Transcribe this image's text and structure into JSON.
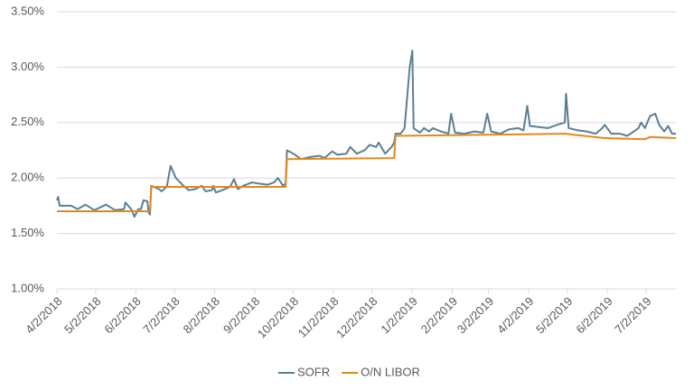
{
  "chart_data": {
    "type": "line",
    "xlim": [
      "4/2/2018",
      "7/25/2019"
    ],
    "xticks": [
      "4/2/2018",
      "5/2/2018",
      "6/2/2018",
      "7/2/2018",
      "8/2/2018",
      "9/2/2018",
      "10/2/2018",
      "11/2/2018",
      "12/2/2018",
      "1/2/2019",
      "2/2/2019",
      "3/2/2019",
      "4/2/2019",
      "5/2/2019",
      "6/2/2019",
      "7/2/2019"
    ],
    "ylim": [
      1,
      3.5
    ],
    "yticks": [
      {
        "value": 1,
        "label": "1.00%"
      },
      {
        "value": 1.5,
        "label": "1.50%"
      },
      {
        "value": 2,
        "label": "2.00%"
      },
      {
        "value": 2.5,
        "label": "2.50%"
      },
      {
        "value": 3,
        "label": "3.00%"
      },
      {
        "value": 3.5,
        "label": "3.50%"
      }
    ],
    "grid": true,
    "legend": "bottom",
    "series": [
      {
        "name": "SOFR",
        "color": "#5b7f95",
        "x": [
          "4/2/2018",
          "4/3/2018",
          "4/4/2018",
          "4/13/2018",
          "4/18/2018",
          "4/24/2018",
          "5/1/2018",
          "5/10/2018",
          "5/17/2018",
          "5/24/2018",
          "5/25/2018",
          "5/30/2018",
          "6/1/2018",
          "6/4/2018",
          "6/6/2018",
          "6/8/2018",
          "6/11/2018",
          "6/12/2018",
          "6/13/2018",
          "6/14/2018",
          "6/20/2018",
          "6/22/2018",
          "6/26/2018",
          "6/29/2018",
          "7/3/2018",
          "7/9/2018",
          "7/13/2018",
          "7/18/2018",
          "7/23/2018",
          "7/26/2018",
          "7/31/2018",
          "8/1/2018",
          "8/3/2018",
          "8/8/2018",
          "8/14/2018",
          "8/17/2018",
          "8/20/2018",
          "8/24/2018",
          "8/31/2018",
          "9/5/2018",
          "9/12/2018",
          "9/17/2018",
          "9/20/2018",
          "9/24/2018",
          "9/26/2018",
          "9/27/2018",
          "10/2/2018",
          "10/8/2018",
          "10/15/2018",
          "10/22/2018",
          "10/26/2018",
          "11/1/2018",
          "11/5/2018",
          "11/12/2018",
          "11/15/2018",
          "11/20/2018",
          "11/26/2018",
          "11/30/2018",
          "12/5/2018",
          "12/7/2018",
          "12/12/2018",
          "12/17/2018",
          "12/19/2018",
          "12/20/2018",
          "12/24/2018",
          "12/27/2018",
          "12/31/2018",
          "1/2/2019",
          "1/3/2019",
          "1/8/2019",
          "1/11/2019",
          "1/15/2019",
          "1/18/2019",
          "1/24/2019",
          "1/30/2019",
          "2/1/2019",
          "2/4/2019",
          "2/11/2019",
          "2/19/2019",
          "2/26/2019",
          "3/1/2019",
          "3/4/2019",
          "3/11/2019",
          "3/18/2019",
          "3/25/2019",
          "3/29/2019",
          "4/1/2019",
          "4/3/2019",
          "4/10/2019",
          "4/17/2019",
          "4/24/2019",
          "4/30/2019",
          "5/1/2019",
          "5/3/2019",
          "5/10/2019",
          "5/17/2019",
          "5/24/2019",
          "5/29/2019",
          "5/31/2019",
          "6/5/2019",
          "6/12/2019",
          "6/17/2019",
          "6/20/2019",
          "6/26/2019",
          "6/28/2019",
          "7/1/2019",
          "7/5/2019",
          "7/9/2019",
          "7/12/2019",
          "7/16/2019",
          "7/19/2019",
          "7/22/2019",
          "7/25/2019"
        ],
        "values": [
          1.8,
          1.83,
          1.75,
          1.75,
          1.72,
          1.76,
          1.71,
          1.76,
          1.71,
          1.72,
          1.78,
          1.71,
          1.65,
          1.72,
          1.72,
          1.8,
          1.79,
          1.69,
          1.67,
          1.93,
          1.9,
          1.88,
          1.92,
          2.11,
          2.0,
          1.93,
          1.89,
          1.9,
          1.93,
          1.88,
          1.89,
          1.93,
          1.87,
          1.89,
          1.92,
          1.99,
          1.9,
          1.93,
          1.96,
          1.95,
          1.94,
          1.96,
          2.0,
          1.93,
          1.95,
          2.25,
          2.22,
          2.17,
          2.19,
          2.2,
          2.18,
          2.24,
          2.21,
          2.22,
          2.28,
          2.22,
          2.25,
          2.3,
          2.28,
          2.32,
          2.22,
          2.28,
          2.32,
          2.4,
          2.4,
          2.45,
          3.0,
          3.15,
          2.45,
          2.41,
          2.45,
          2.42,
          2.45,
          2.42,
          2.4,
          2.58,
          2.41,
          2.4,
          2.42,
          2.41,
          2.58,
          2.42,
          2.4,
          2.44,
          2.45,
          2.43,
          2.65,
          2.47,
          2.46,
          2.45,
          2.48,
          2.5,
          2.76,
          2.45,
          2.43,
          2.42,
          2.4,
          2.45,
          2.48,
          2.4,
          2.4,
          2.38,
          2.4,
          2.45,
          2.5,
          2.45,
          2.56,
          2.58,
          2.48,
          2.42,
          2.47,
          2.4,
          2.4
        ]
      },
      {
        "name": "O/N LIBOR",
        "color": "#e08a1e",
        "x": [
          "4/2/2018",
          "6/13/2018",
          "6/14/2018",
          "9/26/2018",
          "9/27/2018",
          "12/19/2018",
          "12/20/2018",
          "3/1/2019",
          "4/30/2019",
          "5/31/2019",
          "7/1/2019",
          "7/5/2019",
          "7/25/2019"
        ],
        "values": [
          1.7,
          1.7,
          1.92,
          1.92,
          2.17,
          2.18,
          2.38,
          2.39,
          2.4,
          2.36,
          2.35,
          2.37,
          2.36
        ]
      }
    ]
  }
}
